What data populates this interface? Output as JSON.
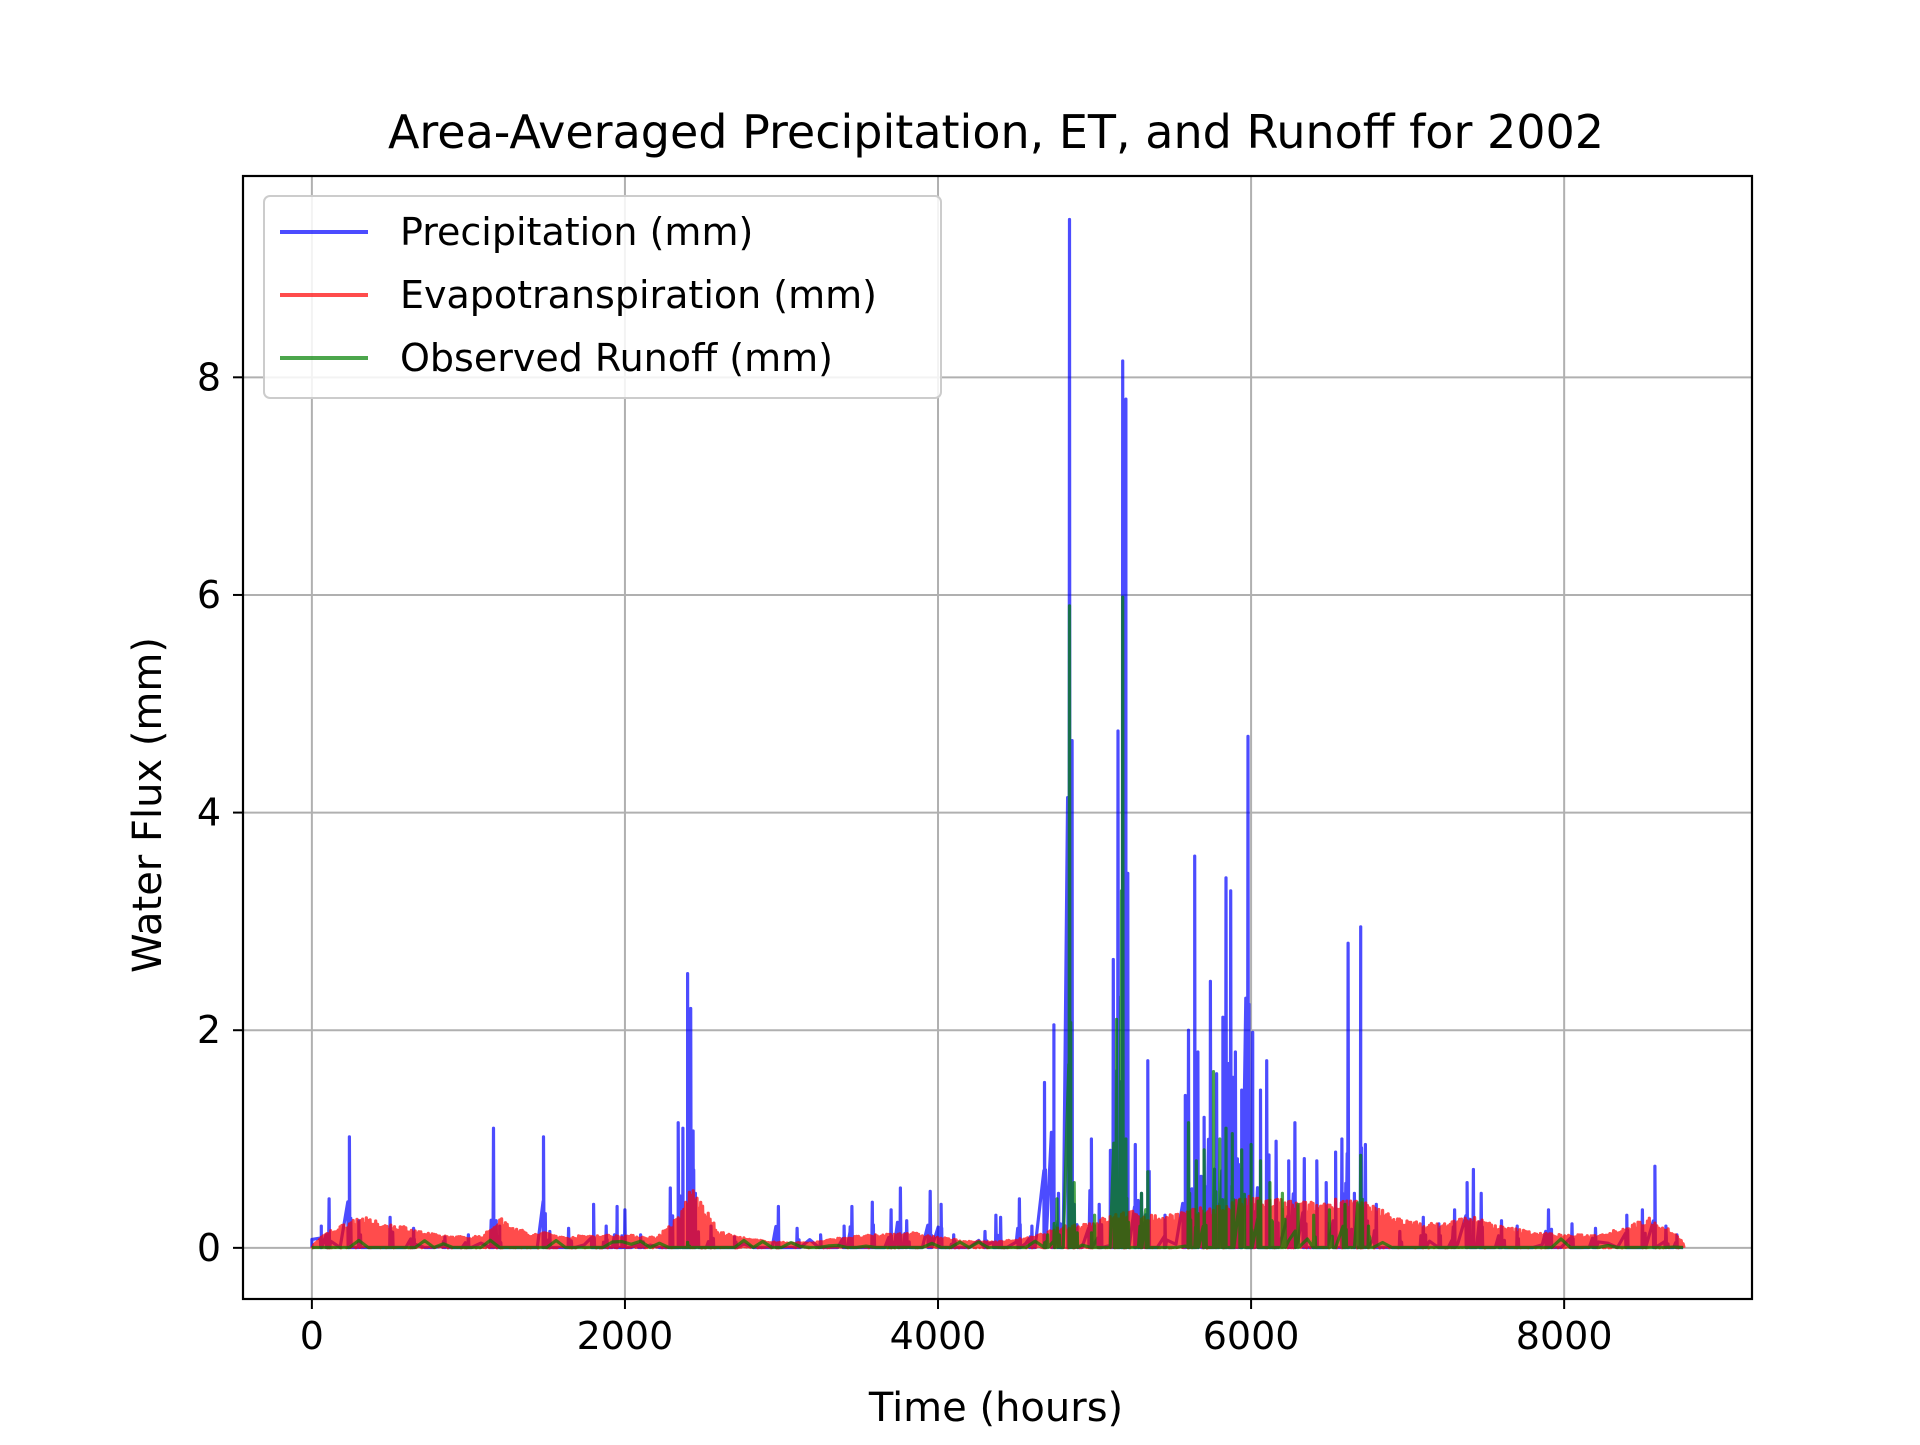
{
  "chart_data": {
    "type": "line",
    "title": "Area-Averaged Precipitation, ET, and Runoff for 2002",
    "xlabel": "Time (hours)",
    "ylabel": "Water Flux (mm)",
    "xlim": [
      -440,
      9200
    ],
    "ylim": [
      -0.47,
      9.85
    ],
    "xticks": [
      0,
      2000,
      4000,
      6000,
      8000
    ],
    "yticks": [
      0,
      2,
      4,
      6,
      8
    ],
    "grid": true,
    "legend_position": "top-left",
    "series": [
      {
        "name": "Precipitation (mm)",
        "color": "#0000ff",
        "opacity": 0.7,
        "spikes": [
          [
            60,
            0.2
          ],
          [
            110,
            0.45
          ],
          [
            240,
            1.02
          ],
          [
            300,
            0.25
          ],
          [
            500,
            0.28
          ],
          [
            650,
            0.18
          ],
          [
            850,
            0.1
          ],
          [
            1000,
            0.12
          ],
          [
            1160,
            1.1
          ],
          [
            1200,
            0.2
          ],
          [
            1480,
            1.02
          ],
          [
            1520,
            0.15
          ],
          [
            1640,
            0.18
          ],
          [
            1800,
            0.4
          ],
          [
            1880,
            0.2
          ],
          [
            1950,
            0.38
          ],
          [
            2000,
            0.35
          ],
          [
            2100,
            0.12
          ],
          [
            2290,
            0.55
          ],
          [
            2340,
            1.15
          ],
          [
            2370,
            1.1
          ],
          [
            2400,
            2.52
          ],
          [
            2420,
            2.2
          ],
          [
            2450,
            0.5
          ],
          [
            2550,
            0.2
          ],
          [
            2700,
            0.1
          ],
          [
            2980,
            0.38
          ],
          [
            3100,
            0.18
          ],
          [
            3250,
            0.12
          ],
          [
            3400,
            0.2
          ],
          [
            3450,
            0.38
          ],
          [
            3580,
            0.42
          ],
          [
            3700,
            0.35
          ],
          [
            3760,
            0.55
          ],
          [
            3800,
            0.25
          ],
          [
            3950,
            0.52
          ],
          [
            4020,
            0.4
          ],
          [
            4100,
            0.12
          ],
          [
            4300,
            0.15
          ],
          [
            4370,
            0.3
          ],
          [
            4400,
            0.28
          ],
          [
            4520,
            0.45
          ],
          [
            4600,
            0.2
          ],
          [
            4680,
            1.52
          ],
          [
            4740,
            2.05
          ],
          [
            4770,
            0.5
          ],
          [
            4840,
            9.45
          ],
          [
            4870,
            0.4
          ],
          [
            4980,
            1.0
          ],
          [
            5030,
            0.4
          ],
          [
            5120,
            2.65
          ],
          [
            5150,
            4.75
          ],
          [
            5180,
            8.15
          ],
          [
            5200,
            7.8
          ],
          [
            5260,
            0.95
          ],
          [
            5300,
            0.5
          ],
          [
            5340,
            1.72
          ],
          [
            5450,
            0.3
          ],
          [
            5580,
            1.4
          ],
          [
            5600,
            2.0
          ],
          [
            5640,
            3.6
          ],
          [
            5660,
            1.8
          ],
          [
            5700,
            1.2
          ],
          [
            5740,
            2.45
          ],
          [
            5780,
            1.6
          ],
          [
            5820,
            2.12
          ],
          [
            5840,
            3.4
          ],
          [
            5870,
            3.28
          ],
          [
            5900,
            1.8
          ],
          [
            5940,
            1.45
          ],
          [
            5980,
            4.7
          ],
          [
            6010,
            1.98
          ],
          [
            6060,
            1.45
          ],
          [
            6100,
            1.72
          ],
          [
            6160,
            0.98
          ],
          [
            6240,
            0.8
          ],
          [
            6280,
            1.15
          ],
          [
            6340,
            0.82
          ],
          [
            6420,
            0.8
          ],
          [
            6480,
            0.6
          ],
          [
            6540,
            0.88
          ],
          [
            6580,
            1.0
          ],
          [
            6620,
            2.8
          ],
          [
            6660,
            0.5
          ],
          [
            6700,
            2.95
          ],
          [
            6730,
            0.95
          ],
          [
            6800,
            0.4
          ],
          [
            6950,
            0.15
          ],
          [
            7100,
            0.28
          ],
          [
            7200,
            0.22
          ],
          [
            7300,
            0.35
          ],
          [
            7380,
            0.6
          ],
          [
            7420,
            0.72
          ],
          [
            7470,
            0.5
          ],
          [
            7600,
            0.25
          ],
          [
            7700,
            0.2
          ],
          [
            7900,
            0.35
          ],
          [
            8050,
            0.22
          ],
          [
            8200,
            0.18
          ],
          [
            8400,
            0.3
          ],
          [
            8500,
            0.35
          ],
          [
            8580,
            0.75
          ],
          [
            8650,
            0.2
          ],
          [
            8720,
            0.12
          ]
        ]
      },
      {
        "name": "Evapotranspiration (mm)",
        "color": "#ff0000",
        "opacity": 0.7,
        "envelope": [
          [
            0,
            0.02
          ],
          [
            100,
            0.15
          ],
          [
            200,
            0.22
          ],
          [
            300,
            0.3
          ],
          [
            400,
            0.25
          ],
          [
            500,
            0.22
          ],
          [
            600,
            0.2
          ],
          [
            700,
            0.15
          ],
          [
            800,
            0.12
          ],
          [
            1000,
            0.1
          ],
          [
            1100,
            0.12
          ],
          [
            1200,
            0.28
          ],
          [
            1300,
            0.2
          ],
          [
            1400,
            0.12
          ],
          [
            1500,
            0.15
          ],
          [
            1600,
            0.1
          ],
          [
            1800,
            0.12
          ],
          [
            2000,
            0.12
          ],
          [
            2200,
            0.1
          ],
          [
            2350,
            0.3
          ],
          [
            2420,
            0.58
          ],
          [
            2480,
            0.45
          ],
          [
            2600,
            0.15
          ],
          [
            2800,
            0.08
          ],
          [
            3000,
            0.05
          ],
          [
            3200,
            0.05
          ],
          [
            3400,
            0.1
          ],
          [
            3600,
            0.12
          ],
          [
            3800,
            0.15
          ],
          [
            4000,
            0.1
          ],
          [
            4200,
            0.06
          ],
          [
            4400,
            0.06
          ],
          [
            4600,
            0.1
          ],
          [
            4800,
            0.2
          ],
          [
            5000,
            0.25
          ],
          [
            5200,
            0.35
          ],
          [
            5400,
            0.3
          ],
          [
            5600,
            0.35
          ],
          [
            5800,
            0.4
          ],
          [
            6000,
            0.48
          ],
          [
            6200,
            0.45
          ],
          [
            6400,
            0.42
          ],
          [
            6600,
            0.48
          ],
          [
            6800,
            0.38
          ],
          [
            7000,
            0.25
          ],
          [
            7200,
            0.22
          ],
          [
            7400,
            0.3
          ],
          [
            7600,
            0.2
          ],
          [
            7800,
            0.15
          ],
          [
            8000,
            0.12
          ],
          [
            8200,
            0.12
          ],
          [
            8400,
            0.2
          ],
          [
            8550,
            0.28
          ],
          [
            8700,
            0.15
          ],
          [
            8760,
            0.05
          ]
        ]
      },
      {
        "name": "Observed Runoff (mm)",
        "color": "#008000",
        "opacity": 0.7,
        "spikes": [
          [
            2400,
            0.05
          ],
          [
            4700,
            0.12
          ],
          [
            4760,
            0.45
          ],
          [
            4840,
            5.9
          ],
          [
            4870,
            0.6
          ],
          [
            5000,
            0.3
          ],
          [
            5140,
            2.1
          ],
          [
            5180,
            5.98
          ],
          [
            5200,
            1.0
          ],
          [
            5300,
            0.5
          ],
          [
            5340,
            0.7
          ],
          [
            5600,
            1.15
          ],
          [
            5650,
            0.8
          ],
          [
            5700,
            0.9
          ],
          [
            5760,
            1.62
          ],
          [
            5800,
            1.0
          ],
          [
            5840,
            1.1
          ],
          [
            5880,
            1.05
          ],
          [
            5940,
            0.9
          ],
          [
            6000,
            0.95
          ],
          [
            6060,
            0.8
          ],
          [
            6120,
            0.6
          ],
          [
            6200,
            0.5
          ],
          [
            6300,
            0.4
          ],
          [
            6400,
            0.3
          ],
          [
            6500,
            0.35
          ],
          [
            6600,
            0.4
          ],
          [
            6700,
            0.85
          ],
          [
            6750,
            0.2
          ]
        ]
      }
    ]
  }
}
